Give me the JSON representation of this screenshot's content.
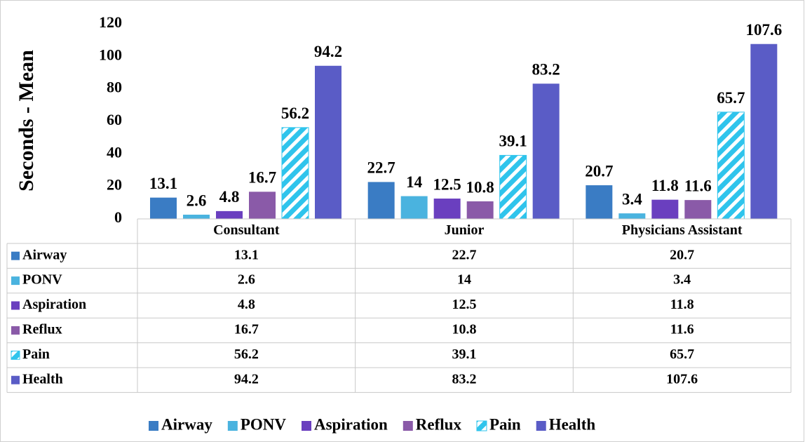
{
  "chart_data": {
    "type": "bar",
    "y_label": "Seconds - Mean",
    "categories": [
      "Consultant",
      "Junior",
      "Physicians Assistant"
    ],
    "series": [
      {
        "name": "Airway",
        "color": "#3a7cc4",
        "values": [
          13.1,
          22.7,
          20.7
        ]
      },
      {
        "name": "PONV",
        "color": "#4ab3df",
        "values": [
          2.6,
          14,
          3.4
        ]
      },
      {
        "name": "Aspiration",
        "color": "#6a3fbf",
        "values": [
          4.8,
          12.5,
          11.8
        ]
      },
      {
        "name": "Reflux",
        "color": "#8a5aa8",
        "values": [
          16.7,
          10.8,
          11.6
        ]
      },
      {
        "name": "Pain",
        "color": "#2fc4ec",
        "pattern": "hatch",
        "values": [
          56.2,
          39.1,
          65.7
        ]
      },
      {
        "name": "Health",
        "color": "#5a5cc6",
        "values": [
          94.2,
          83.2,
          107.6
        ]
      }
    ],
    "ylim": [
      0,
      120
    ],
    "yticks": [
      0,
      20,
      40,
      60,
      80,
      100,
      120
    ],
    "data_table": true,
    "legend": "bottom"
  }
}
